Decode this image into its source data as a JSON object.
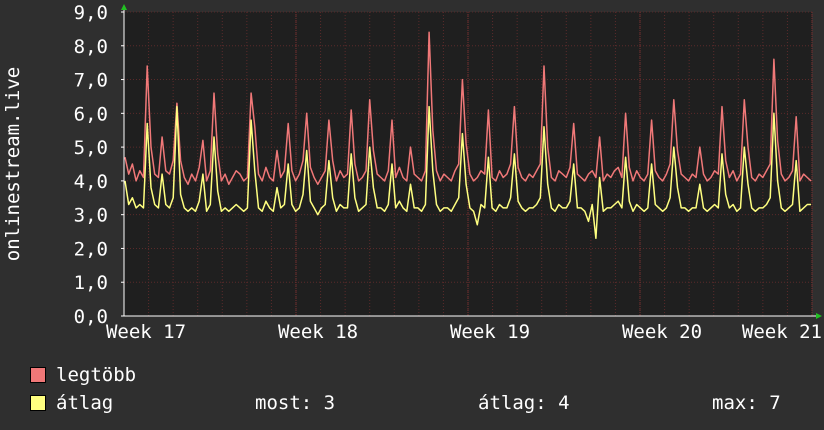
{
  "chart_data": {
    "type": "line",
    "ylabel": "onlinestream.live",
    "ylim": [
      0,
      9
    ],
    "yticks": [
      "0,0",
      "1,0",
      "2,0",
      "3,0",
      "4,0",
      "5,0",
      "6,0",
      "7,0",
      "8,0",
      "9,0"
    ],
    "xticks": [
      "Week 17",
      "Week 18",
      "Week 19",
      "Week 20",
      "Week 21"
    ],
    "grid": true,
    "colors": {
      "background": "#2f2f2f",
      "plot_background": "#1f1f1f",
      "grid": "#5a2a2a",
      "axis": "#ffffff"
    },
    "series": [
      {
        "name": "legtöbb",
        "color": "#f07878",
        "values": [
          4.7,
          4.2,
          4.5,
          4.0,
          4.3,
          4.1,
          7.4,
          5.0,
          4.2,
          4.1,
          5.3,
          4.3,
          4.2,
          4.6,
          6.3,
          4.6,
          4.1,
          3.9,
          4.2,
          4.0,
          4.4,
          5.2,
          4.0,
          4.3,
          6.6,
          4.8,
          4.0,
          4.2,
          3.9,
          4.1,
          4.3,
          4.2,
          4.0,
          4.1,
          6.6,
          5.6,
          4.2,
          4.0,
          4.4,
          4.1,
          4.0,
          4.9,
          4.1,
          4.3,
          5.7,
          4.3,
          4.0,
          4.2,
          4.6,
          6.0,
          4.4,
          4.1,
          3.9,
          4.1,
          4.3,
          5.8,
          4.6,
          4.0,
          4.3,
          4.1,
          4.2,
          6.1,
          4.5,
          4.0,
          4.1,
          4.3,
          6.4,
          4.9,
          4.2,
          4.1,
          4.0,
          4.3,
          5.8,
          4.1,
          4.4,
          4.1,
          4.0,
          5.0,
          4.2,
          4.1,
          4.0,
          4.3,
          8.4,
          5.5,
          4.3,
          4.0,
          4.2,
          4.1,
          4.0,
          4.3,
          4.5,
          7.0,
          5.1,
          4.2,
          4.0,
          4.1,
          4.3,
          4.2,
          6.1,
          4.1,
          4.0,
          4.3,
          4.1,
          4.2,
          4.5,
          6.2,
          4.4,
          4.1,
          4.0,
          4.2,
          4.1,
          4.3,
          4.5,
          7.4,
          5.0,
          4.1,
          4.0,
          4.3,
          4.2,
          4.1,
          4.4,
          5.7,
          4.2,
          4.1,
          4.0,
          4.2,
          4.3,
          4.1,
          5.3,
          4.0,
          4.2,
          4.1,
          4.3,
          4.4,
          4.1,
          6.0,
          4.4,
          4.0,
          4.3,
          4.1,
          4.0,
          4.2,
          5.8,
          4.3,
          4.1,
          4.0,
          4.2,
          4.5,
          6.4,
          4.9,
          4.2,
          4.1,
          4.0,
          4.2,
          4.1,
          5.0,
          4.2,
          4.0,
          4.1,
          4.3,
          4.2,
          6.2,
          4.6,
          4.1,
          4.3,
          4.0,
          4.2,
          6.4,
          5.0,
          4.1,
          4.0,
          4.2,
          4.1,
          4.3,
          4.5,
          7.6,
          5.2,
          4.2,
          4.0,
          4.1,
          4.3,
          5.9,
          4.0,
          4.2,
          4.1,
          4.0
        ],
        "current": null
      },
      {
        "name": "átlag",
        "color": "#ffff80",
        "values": [
          4.0,
          3.3,
          3.5,
          3.2,
          3.3,
          3.2,
          5.7,
          3.8,
          3.3,
          3.2,
          4.2,
          3.3,
          3.2,
          3.5,
          6.2,
          3.6,
          3.2,
          3.1,
          3.2,
          3.1,
          3.4,
          4.2,
          3.1,
          3.3,
          5.3,
          3.7,
          3.1,
          3.2,
          3.1,
          3.2,
          3.3,
          3.2,
          3.1,
          3.2,
          5.8,
          4.3,
          3.2,
          3.1,
          3.4,
          3.2,
          3.1,
          3.8,
          3.2,
          3.3,
          4.5,
          3.3,
          3.1,
          3.2,
          3.6,
          4.9,
          3.4,
          3.2,
          3.0,
          3.2,
          3.3,
          4.6,
          3.5,
          3.1,
          3.3,
          3.2,
          3.2,
          4.8,
          3.5,
          3.1,
          3.2,
          3.3,
          5.0,
          3.8,
          3.2,
          3.2,
          3.1,
          3.3,
          4.5,
          3.2,
          3.4,
          3.2,
          3.1,
          3.9,
          3.2,
          3.2,
          3.1,
          3.3,
          6.2,
          4.3,
          3.3,
          3.1,
          3.2,
          3.2,
          3.1,
          3.3,
          3.5,
          5.4,
          3.9,
          3.2,
          3.1,
          2.7,
          3.3,
          3.2,
          4.7,
          3.2,
          3.1,
          3.3,
          3.2,
          3.2,
          3.5,
          4.8,
          3.4,
          3.2,
          3.1,
          3.2,
          3.2,
          3.3,
          3.5,
          5.6,
          3.9,
          3.2,
          3.1,
          3.3,
          3.2,
          3.2,
          3.4,
          4.5,
          3.2,
          3.2,
          3.1,
          2.8,
          3.3,
          2.3,
          4.1,
          3.1,
          3.2,
          3.2,
          3.3,
          3.4,
          3.2,
          4.7,
          3.4,
          3.1,
          3.3,
          3.2,
          3.1,
          3.2,
          4.5,
          3.3,
          3.2,
          3.1,
          3.2,
          3.5,
          5.0,
          3.8,
          3.2,
          3.2,
          3.1,
          3.2,
          3.2,
          3.9,
          3.2,
          3.1,
          3.2,
          3.3,
          3.2,
          4.8,
          3.6,
          3.2,
          3.3,
          3.1,
          3.2,
          5.0,
          3.9,
          3.2,
          3.1,
          3.2,
          3.2,
          3.3,
          3.5,
          6.0,
          4.0,
          3.2,
          3.1,
          3.2,
          3.3,
          4.6,
          3.1,
          3.2,
          3.3,
          3.3
        ]
      }
    ]
  },
  "legend": {
    "items": [
      {
        "label": "legtöbb",
        "color": "#f07878"
      },
      {
        "label": "átlag",
        "color": "#ffff80"
      }
    ]
  },
  "stats": {
    "most": "most: 3",
    "atlag": "átlag: 4",
    "max": "max: 7"
  }
}
